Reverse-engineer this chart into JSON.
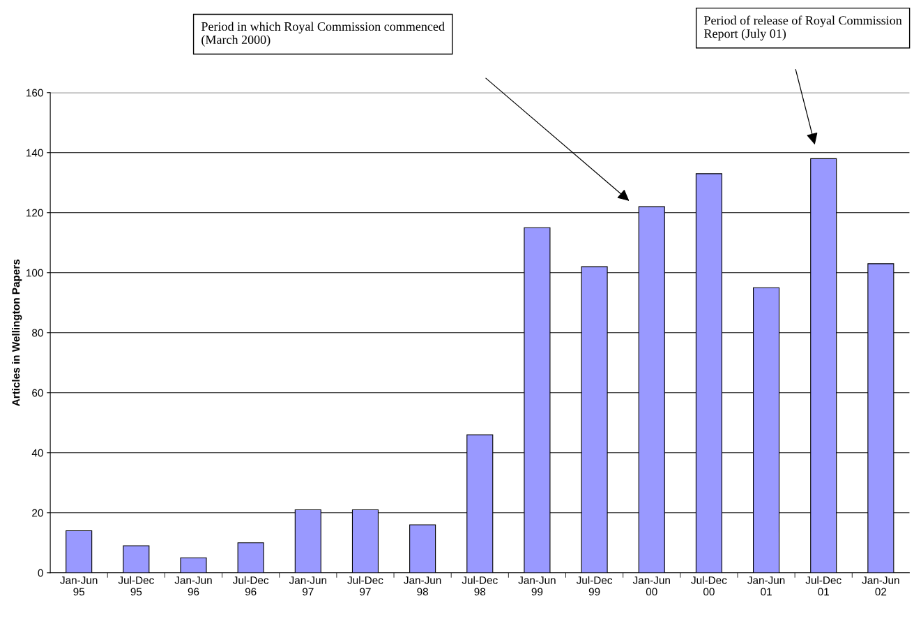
{
  "chart_data": {
    "type": "bar",
    "ylabel": "Articles in Wellington Papers",
    "categories": [
      "Jan-Jun 95",
      "Jul-Dec 95",
      "Jan-Jun 96",
      "Jul-Dec 96",
      "Jan-Jun 97",
      "Jul-Dec 97",
      "Jan-Jun 98",
      "Jul-Dec 98",
      "Jan-Jun 99",
      "Jul-Dec 99",
      "Jan-Jun 00",
      "Jul-Dec 00",
      "Jan-Jun 01",
      "Jul-Dec 01",
      "Jan-Jun 02"
    ],
    "values": [
      14,
      9,
      5,
      10,
      21,
      21,
      16,
      46,
      115,
      102,
      122,
      133,
      95,
      138,
      103
    ],
    "color": "#9999ff",
    "ylim": [
      0,
      160
    ],
    "yticks": [
      0,
      20,
      40,
      60,
      80,
      100,
      120,
      140,
      160
    ],
    "grid": "y",
    "legend": false,
    "annotations": [
      "Period in which Royal Commission commenced\n(March 2000)",
      "Period of release of Royal Commission\nReport (July 01)"
    ]
  }
}
